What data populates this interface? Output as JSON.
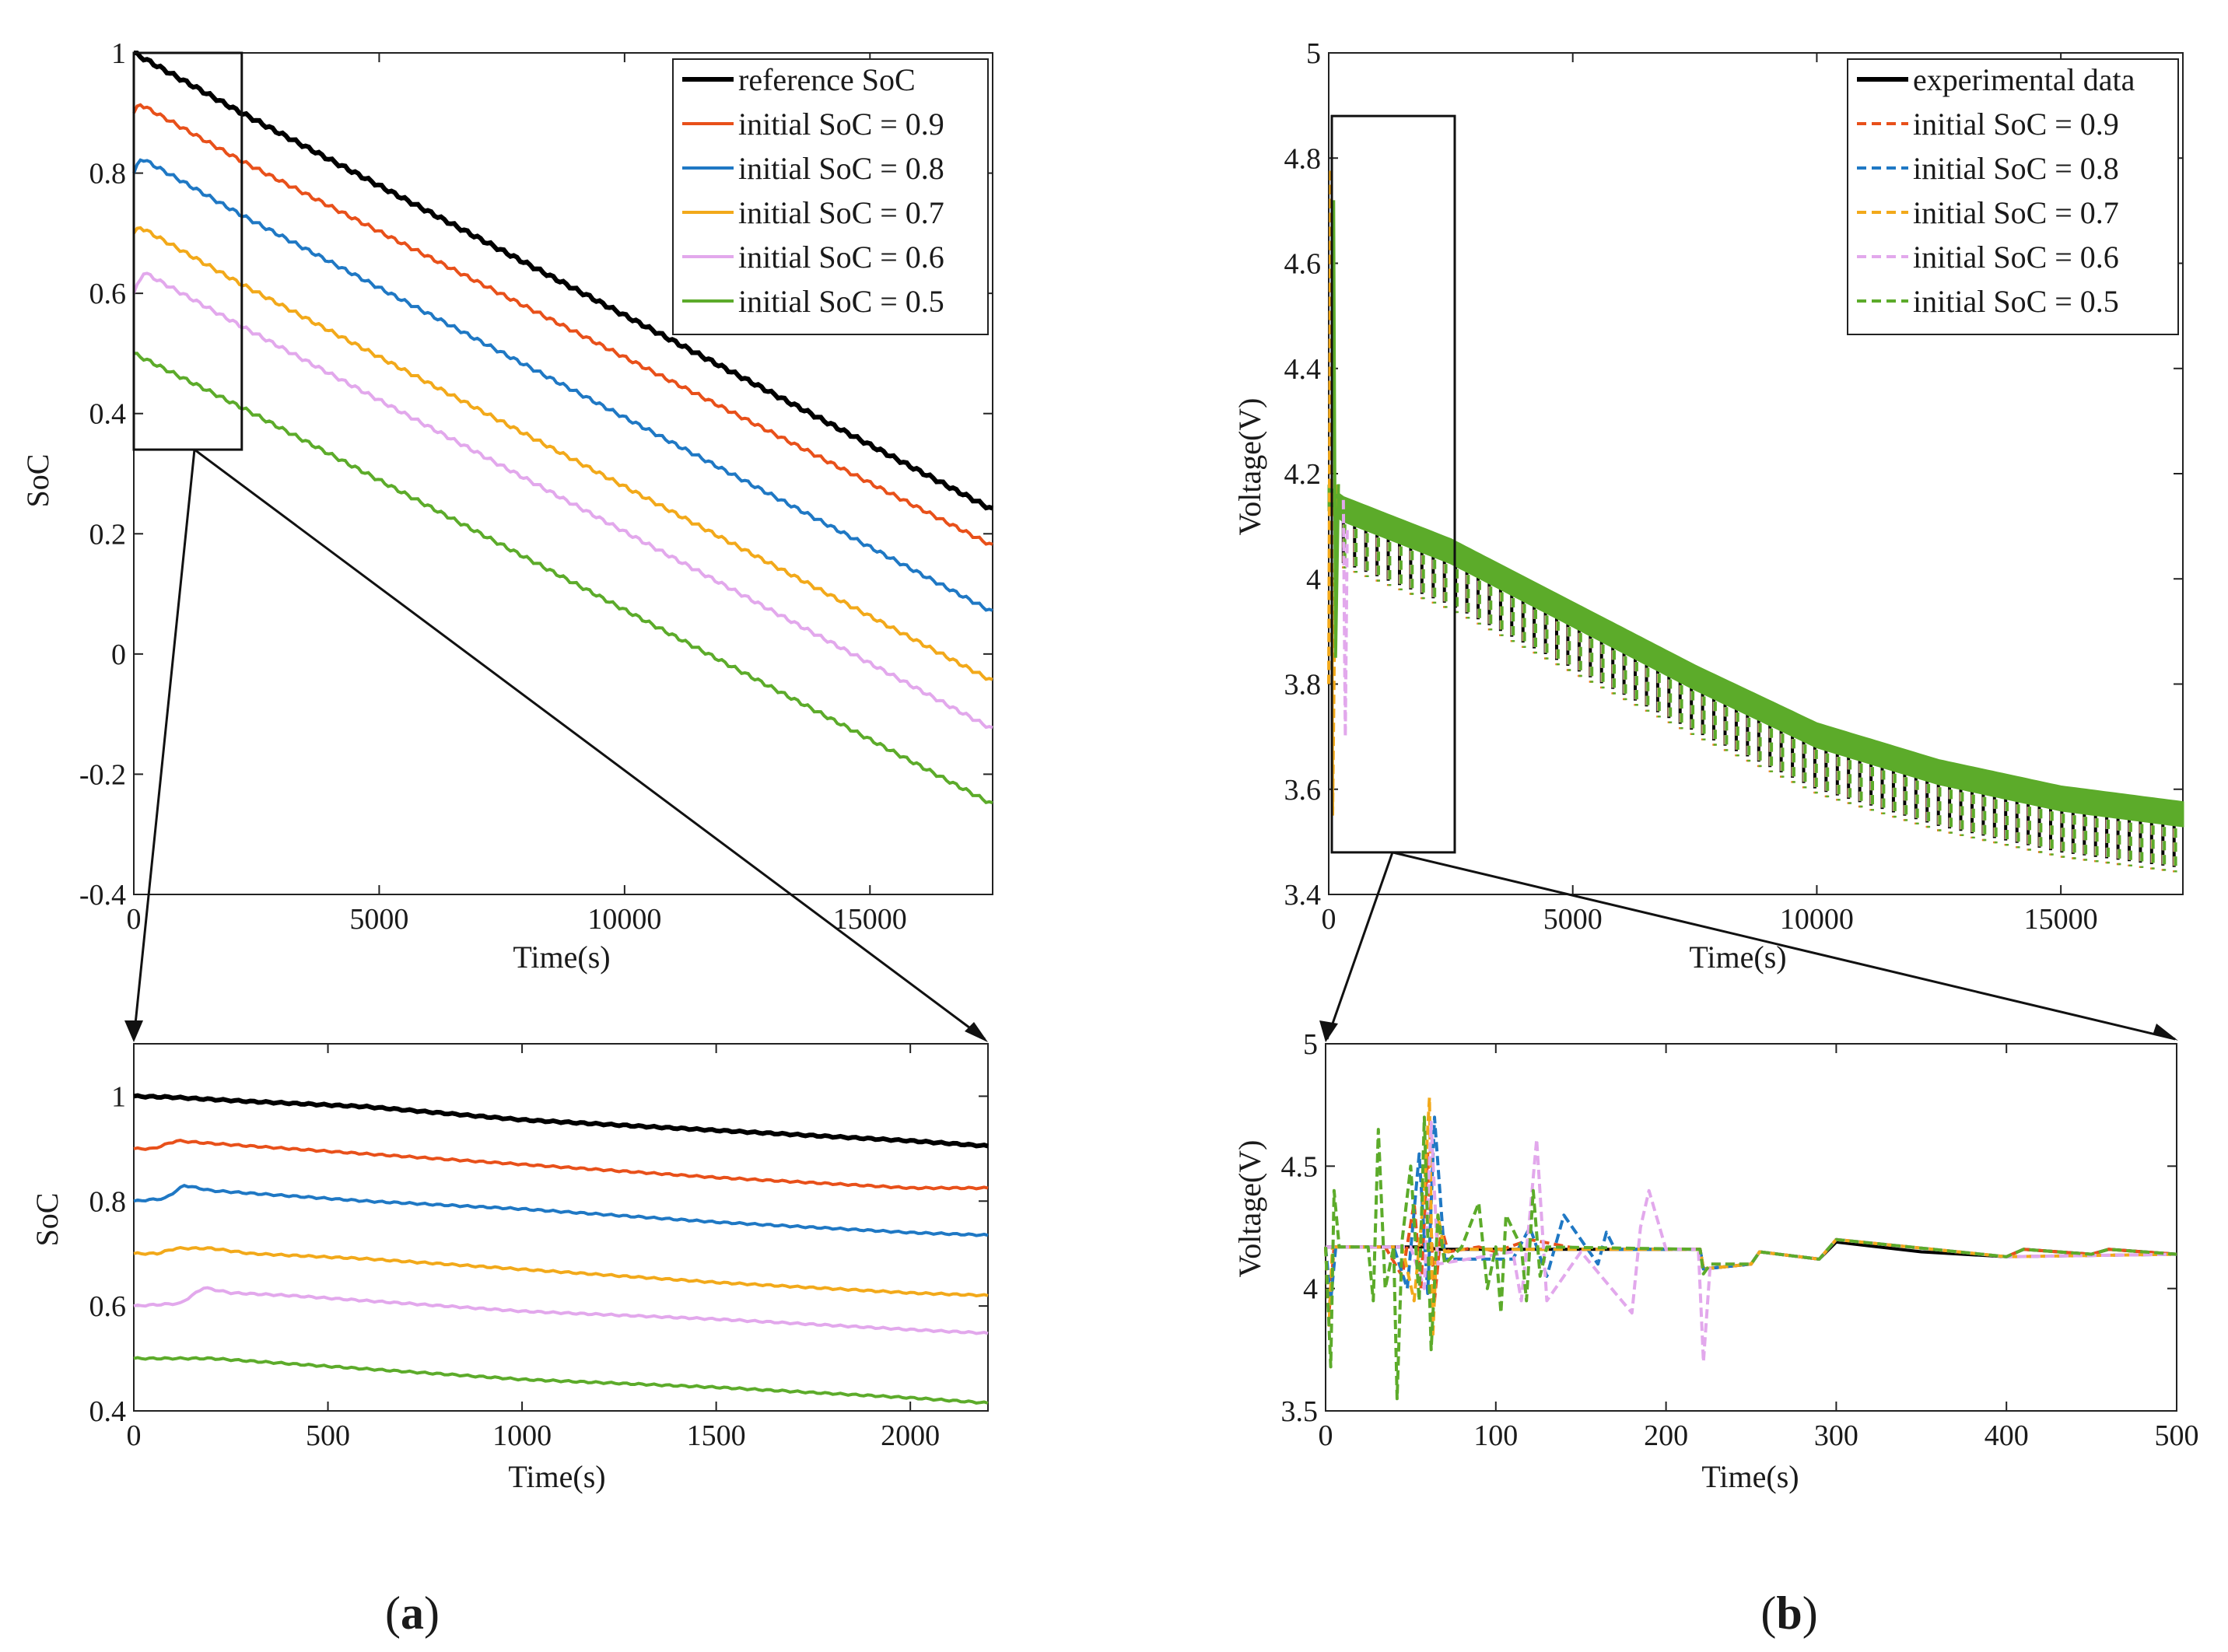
{
  "panel_labels": {
    "a": "a",
    "b": "b",
    "open_paren": "(",
    "close_paren": ")"
  },
  "colors": {
    "reference": "#000000",
    "s09": "#e8501a",
    "s08": "#1f78c4",
    "s07": "#f2a91a",
    "s06": "#e2a8ec",
    "s05": "#5cab2a"
  },
  "chart_data": [
    {
      "id": "soc_main",
      "type": "line",
      "xlabel": "Time(s)",
      "ylabel": "SoC",
      "xlim": [
        0,
        17500
      ],
      "ylim": [
        -0.4,
        1.0
      ],
      "xticks": [
        "0",
        "5000",
        "10000",
        "15000"
      ],
      "yticks": [
        "-0.4",
        "-0.2",
        "0",
        "0.2",
        "0.4",
        "0.6",
        "0.8",
        "1"
      ],
      "grid": false,
      "legend_position": "top-right",
      "series": [
        {
          "name": "reference SoC",
          "x": [
            0,
            2200,
            17500
          ],
          "y": [
            1.0,
            0.9,
            0.24
          ],
          "style": "solid",
          "width": 3
        },
        {
          "name": "initial SoC = 0.9",
          "x": [
            0,
            120,
            2200,
            17500
          ],
          "y": [
            0.9,
            0.915,
            0.82,
            0.18
          ],
          "style": "solid",
          "width": 2
        },
        {
          "name": "initial SoC = 0.8",
          "x": [
            0,
            150,
            2200,
            17500
          ],
          "y": [
            0.8,
            0.825,
            0.73,
            0.07
          ],
          "style": "solid",
          "width": 2
        },
        {
          "name": "initial SoC = 0.7",
          "x": [
            0,
            130,
            2200,
            17500
          ],
          "y": [
            0.7,
            0.71,
            0.615,
            -0.045
          ],
          "style": "solid",
          "width": 2
        },
        {
          "name": "initial SoC = 0.6",
          "x": [
            0,
            200,
            2200,
            17500
          ],
          "y": [
            0.6,
            0.635,
            0.545,
            -0.125
          ],
          "style": "solid",
          "width": 2
        },
        {
          "name": "initial SoC = 0.5",
          "x": [
            0,
            2200,
            17500
          ],
          "y": [
            0.5,
            0.41,
            -0.25
          ],
          "style": "solid",
          "width": 2
        }
      ]
    },
    {
      "id": "soc_zoom",
      "type": "line",
      "xlabel": "Time(s)",
      "ylabel": "SoC",
      "xlim": [
        0,
        2200
      ],
      "ylim": [
        0.4,
        1.1
      ],
      "xticks": [
        "0",
        "500",
        "1000",
        "1500",
        "2000"
      ],
      "yticks": [
        "0.4",
        "0.6",
        "0.8",
        "1"
      ],
      "grid": false,
      "series": [
        {
          "name": "reference SoC",
          "x": [
            0,
            100,
            300,
            600,
            1000,
            1500,
            2000,
            2200
          ],
          "y": [
            1.0,
            0.998,
            0.99,
            0.98,
            0.955,
            0.935,
            0.915,
            0.905
          ]
        },
        {
          "name": "initial SoC = 0.9",
          "x": [
            0,
            50,
            110,
            200,
            300,
            600,
            1000,
            1500,
            2000,
            2200
          ],
          "y": [
            0.9,
            0.9,
            0.915,
            0.91,
            0.905,
            0.89,
            0.87,
            0.845,
            0.825,
            0.825
          ]
        },
        {
          "name": "initial SoC = 0.8",
          "x": [
            0,
            80,
            130,
            200,
            300,
            600,
            1000,
            1500,
            2000,
            2200
          ],
          "y": [
            0.8,
            0.805,
            0.83,
            0.82,
            0.815,
            0.8,
            0.785,
            0.76,
            0.74,
            0.735
          ]
        },
        {
          "name": "initial SoC = 0.7",
          "x": [
            0,
            60,
            110,
            200,
            300,
            600,
            1000,
            1500,
            2000,
            2200
          ],
          "y": [
            0.7,
            0.7,
            0.71,
            0.71,
            0.7,
            0.69,
            0.67,
            0.645,
            0.625,
            0.62
          ]
        },
        {
          "name": "initial SoC = 0.6",
          "x": [
            0,
            120,
            180,
            250,
            400,
            600,
            1000,
            1500,
            2000,
            2200
          ],
          "y": [
            0.6,
            0.605,
            0.635,
            0.625,
            0.62,
            0.61,
            0.59,
            0.575,
            0.555,
            0.548
          ]
        },
        {
          "name": "initial SoC = 0.5",
          "x": [
            0,
            100,
            200,
            300,
            600,
            1000,
            1500,
            2000,
            2200
          ],
          "y": [
            0.5,
            0.5,
            0.5,
            0.495,
            0.48,
            0.46,
            0.445,
            0.425,
            0.415
          ]
        }
      ]
    },
    {
      "id": "volt_main",
      "type": "line",
      "xlabel": "Time(s)",
      "ylabel": "Voltage(V)",
      "xlim": [
        0,
        17500
      ],
      "ylim": [
        3.4,
        5.0
      ],
      "xticks": [
        "0",
        "5000",
        "10000",
        "15000"
      ],
      "yticks": [
        "3.4",
        "3.6",
        "3.8",
        "4",
        "4.2",
        "4.4",
        "4.6",
        "4.8",
        "5"
      ],
      "grid": false,
      "legend_position": "top-right",
      "series": [
        {
          "name": "experimental data",
          "style": "solid"
        },
        {
          "name": "initial SoC = 0.9",
          "style": "dashed"
        },
        {
          "name": "initial SoC = 0.8",
          "style": "dashed"
        },
        {
          "name": "initial SoC = 0.7",
          "style": "dashed"
        },
        {
          "name": "initial SoC = 0.6",
          "style": "dashed"
        },
        {
          "name": "initial SoC = 0.5",
          "style": "dashed"
        }
      ],
      "trend": {
        "x": [
          0,
          300,
          2500,
          5000,
          7500,
          10000,
          12500,
          15000,
          17500
        ],
        "y": [
          4.15,
          4.13,
          4.05,
          3.93,
          3.81,
          3.7,
          3.63,
          3.58,
          3.55
        ]
      },
      "pulse_dip": 0.1,
      "initial_spike": {
        "x": [
          40,
          80
        ],
        "y": [
          4.78,
          3.55
        ]
      }
    },
    {
      "id": "volt_zoom",
      "type": "line",
      "xlabel": "Time(s)",
      "ylabel": "Voltage(V)",
      "xlim": [
        0,
        500
      ],
      "ylim": [
        3.5,
        5.0
      ],
      "xticks": [
        "0",
        "100",
        "200",
        "300",
        "400",
        "500"
      ],
      "yticks": [
        "3.5",
        "4",
        "4.5",
        "5"
      ],
      "grid": false,
      "series": [
        {
          "name": "experimental data",
          "x": [
            0,
            60,
            65,
            220,
            222,
            250,
            255,
            290,
            300,
            350,
            400,
            410,
            450,
            460,
            500
          ],
          "y": [
            4.17,
            4.17,
            4.16,
            4.16,
            4.08,
            4.1,
            4.15,
            4.12,
            4.19,
            4.15,
            4.13,
            4.16,
            4.14,
            4.16,
            4.14
          ]
        },
        {
          "name": "initial SoC = 0.9",
          "x": [
            0,
            2,
            5,
            35,
            45,
            52,
            56,
            60,
            64,
            68,
            72,
            90,
            100,
            120,
            150,
            220,
            222,
            250,
            255,
            290,
            300,
            400,
            410,
            450,
            460,
            500
          ],
          "y": [
            4.17,
            3.9,
            4.17,
            4.17,
            4.05,
            4.35,
            4.0,
            4.55,
            3.95,
            4.25,
            4.15,
            4.17,
            4.15,
            4.2,
            4.16,
            4.16,
            4.08,
            4.1,
            4.15,
            4.12,
            4.2,
            4.13,
            4.16,
            4.14,
            4.16,
            4.14
          ]
        },
        {
          "name": "initial SoC = 0.8",
          "x": [
            0,
            3,
            6,
            40,
            48,
            55,
            60,
            64,
            70,
            110,
            120,
            130,
            140,
            160,
            165,
            170,
            220,
            222,
            250,
            255,
            290,
            300,
            400,
            500
          ],
          "y": [
            4.17,
            3.95,
            4.17,
            4.17,
            4.0,
            4.55,
            3.98,
            4.7,
            4.12,
            4.12,
            4.25,
            4.05,
            4.3,
            4.1,
            4.23,
            4.16,
            4.16,
            4.08,
            4.1,
            4.15,
            4.12,
            4.2,
            4.13,
            4.14
          ]
        },
        {
          "name": "initial SoC = 0.7",
          "x": [
            0,
            2,
            4,
            45,
            52,
            58,
            61,
            63,
            66,
            70,
            80,
            120,
            220,
            222,
            250,
            255,
            290,
            300,
            400,
            500
          ],
          "y": [
            4.17,
            3.85,
            4.17,
            4.17,
            3.95,
            4.4,
            4.78,
            3.8,
            4.3,
            4.15,
            4.16,
            4.16,
            4.16,
            4.08,
            4.1,
            4.15,
            4.12,
            4.2,
            4.13,
            4.14
          ]
        },
        {
          "name": "initial SoC = 0.6",
          "x": [
            0,
            50,
            58,
            62,
            66,
            110,
            115,
            120,
            124,
            130,
            150,
            180,
            185,
            190,
            200,
            219,
            222,
            226,
            250,
            255,
            290,
            300,
            400,
            500
          ],
          "y": [
            4.17,
            4.17,
            4.0,
            4.68,
            4.1,
            4.15,
            3.95,
            4.3,
            4.61,
            3.95,
            4.15,
            3.9,
            4.25,
            4.4,
            4.16,
            4.16,
            3.7,
            4.1,
            4.1,
            4.15,
            4.12,
            4.2,
            4.13,
            4.14
          ]
        },
        {
          "name": "initial SoC = 0.5",
          "x": [
            0,
            3,
            5,
            8,
            25,
            28,
            31,
            35,
            40,
            42,
            45,
            50,
            55,
            58,
            62,
            66,
            70,
            80,
            90,
            95,
            100,
            103,
            106,
            115,
            118,
            122,
            126,
            130,
            220,
            222,
            226,
            250,
            255,
            290,
            300,
            400,
            410,
            450,
            460,
            500
          ],
          "y": [
            4.17,
            3.68,
            4.4,
            4.17,
            4.17,
            3.95,
            4.65,
            4.0,
            4.17,
            3.55,
            4.2,
            4.5,
            3.95,
            4.7,
            3.75,
            4.3,
            4.1,
            4.17,
            4.35,
            4.0,
            4.17,
            3.9,
            4.3,
            4.17,
            3.95,
            4.4,
            4.05,
            4.17,
            4.16,
            4.06,
            4.1,
            4.1,
            4.15,
            4.12,
            4.2,
            4.13,
            4.16,
            4.14,
            4.16,
            4.14
          ]
        }
      ]
    }
  ]
}
